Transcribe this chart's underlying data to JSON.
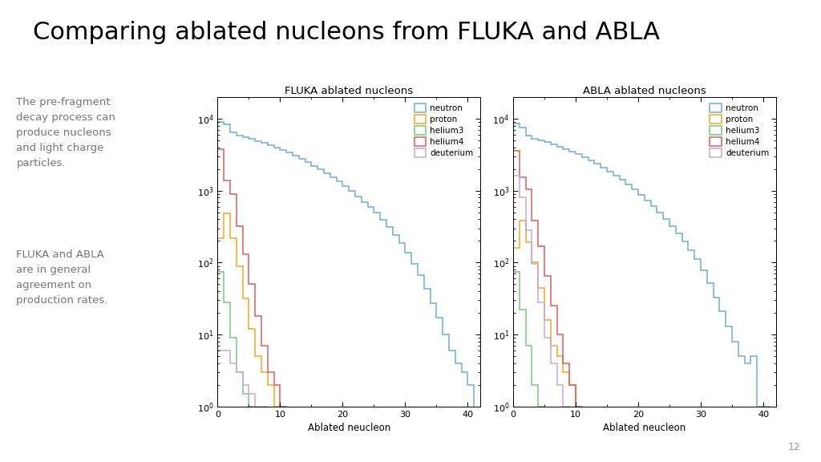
{
  "title": "Comparing ablated nucleons from FLUKA and ABLA",
  "title_fontsize": 22,
  "text1": "The pre-fragment\ndecay process can\nproduce nucleons\nand light charge\nparticles.",
  "text2": "FLUKA and ABLA\nare in general\nagreement on\nproduction rates.",
  "page_number": "12",
  "background_color": "#ffffff",
  "plot1_title": "FLUKA ablated nucleons",
  "plot2_title": "ABLA ablated nucleons",
  "xlabel": "Ablated neucleon",
  "xlim": [
    0,
    42
  ],
  "ylim_log": [
    1,
    20000
  ],
  "xticks": [
    0,
    10,
    20,
    30,
    40
  ],
  "colors": {
    "neutron": "#6ab0d4",
    "proton": "#f5a623",
    "helium3": "#7bc67e",
    "helium4": "#e05c5c",
    "deuterium": "#c8a8d8"
  },
  "legend_labels": [
    "neutron",
    "proton",
    "helium3",
    "helium4",
    "deuterium"
  ],
  "fluka": {
    "neutron": {
      "x": [
        0,
        1,
        2,
        3,
        4,
        5,
        6,
        7,
        8,
        9,
        10,
        11,
        12,
        13,
        14,
        15,
        16,
        17,
        18,
        19,
        20,
        21,
        22,
        23,
        24,
        25,
        26,
        27,
        28,
        29,
        30,
        31,
        32,
        33,
        34,
        35,
        36,
        37,
        38,
        39,
        40
      ],
      "y": [
        9000,
        8400,
        6500,
        5800,
        5500,
        5200,
        4900,
        4600,
        4300,
        4000,
        3700,
        3400,
        3100,
        2800,
        2500,
        2200,
        2000,
        1750,
        1550,
        1350,
        1150,
        980,
        830,
        700,
        590,
        490,
        390,
        310,
        245,
        185,
        138,
        97,
        67,
        43,
        27,
        17,
        10,
        6,
        4,
        3,
        2
      ]
    },
    "proton": {
      "x": [
        0,
        1,
        2,
        3,
        4,
        5,
        6,
        7,
        8,
        9
      ],
      "y": [
        220,
        480,
        220,
        90,
        32,
        12,
        5,
        3,
        2,
        1
      ]
    },
    "helium3": {
      "x": [
        0,
        1,
        2,
        3,
        4,
        5
      ],
      "y": [
        75,
        28,
        9,
        3,
        1.5,
        1
      ]
    },
    "helium4": {
      "x": [
        0,
        1,
        2,
        3,
        4,
        5,
        6,
        7,
        8,
        9,
        10
      ],
      "y": [
        3800,
        1400,
        900,
        320,
        130,
        50,
        18,
        7,
        3,
        2,
        1
      ]
    },
    "deuterium": {
      "x": [
        0,
        1,
        2,
        3,
        4,
        5,
        6,
        7
      ],
      "y": [
        6,
        6,
        4,
        3,
        2,
        1.5,
        1,
        1
      ]
    }
  },
  "abla": {
    "neutron": {
      "x": [
        0,
        1,
        2,
        3,
        4,
        5,
        6,
        7,
        8,
        9,
        10,
        11,
        12,
        13,
        14,
        15,
        16,
        17,
        18,
        19,
        20,
        21,
        22,
        23,
        24,
        25,
        26,
        27,
        28,
        29,
        30,
        31,
        32,
        33,
        34,
        35,
        36,
        37,
        38,
        39,
        40
      ],
      "y": [
        8500,
        7500,
        5800,
        5300,
        5000,
        4700,
        4400,
        4100,
        3800,
        3500,
        3200,
        2900,
        2650,
        2350,
        2100,
        1850,
        1620,
        1420,
        1230,
        1050,
        880,
        730,
        605,
        490,
        400,
        320,
        255,
        195,
        150,
        112,
        78,
        52,
        33,
        21,
        13,
        8,
        5,
        4,
        5,
        1,
        1
      ]
    },
    "proton": {
      "x": [
        0,
        1,
        2,
        3,
        4,
        5,
        6,
        7,
        8,
        9
      ],
      "y": [
        160,
        380,
        190,
        100,
        45,
        16,
        7,
        5,
        3,
        2
      ]
    },
    "helium3": {
      "x": [
        0,
        1,
        2,
        3,
        4
      ],
      "y": [
        75,
        22,
        7,
        2,
        1
      ]
    },
    "helium4": {
      "x": [
        0,
        1,
        2,
        3,
        4,
        5,
        6,
        7,
        8,
        9,
        10
      ],
      "y": [
        3600,
        1550,
        1050,
        380,
        170,
        65,
        25,
        10,
        4,
        2,
        1
      ]
    },
    "deuterium": {
      "x": [
        0,
        1,
        2,
        3,
        4,
        5,
        6,
        7,
        8
      ],
      "y": [
        1600,
        800,
        280,
        95,
        28,
        9,
        4,
        2,
        1
      ]
    }
  }
}
